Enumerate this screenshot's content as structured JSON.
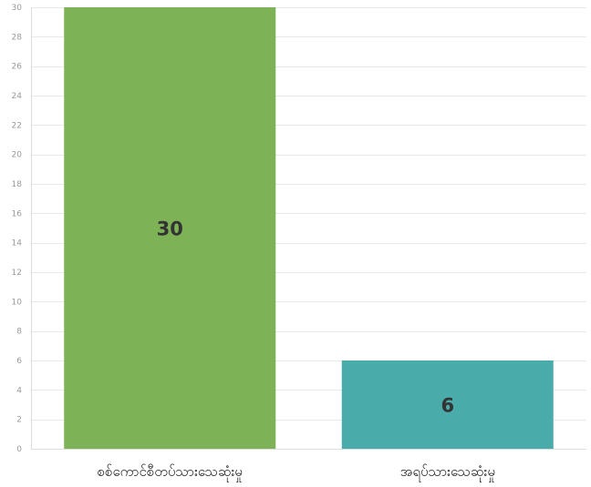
{
  "chart_data": {
    "type": "bar",
    "categories": [
      "စစ်ကောင်စီတပ်သားသေဆုံးမှု",
      "အရပ်သားသေဆုံးမှု"
    ],
    "values": [
      30,
      6
    ],
    "data_labels": [
      "30",
      "6"
    ],
    "colors": [
      "#7db257",
      "#4aabab"
    ],
    "ylim": [
      0,
      30
    ],
    "yticks": [
      0,
      2,
      4,
      6,
      8,
      10,
      12,
      14,
      16,
      18,
      20,
      22,
      24,
      26,
      28,
      30
    ],
    "title": "",
    "xlabel": "",
    "ylabel": "",
    "grid": true,
    "legend": "none"
  }
}
